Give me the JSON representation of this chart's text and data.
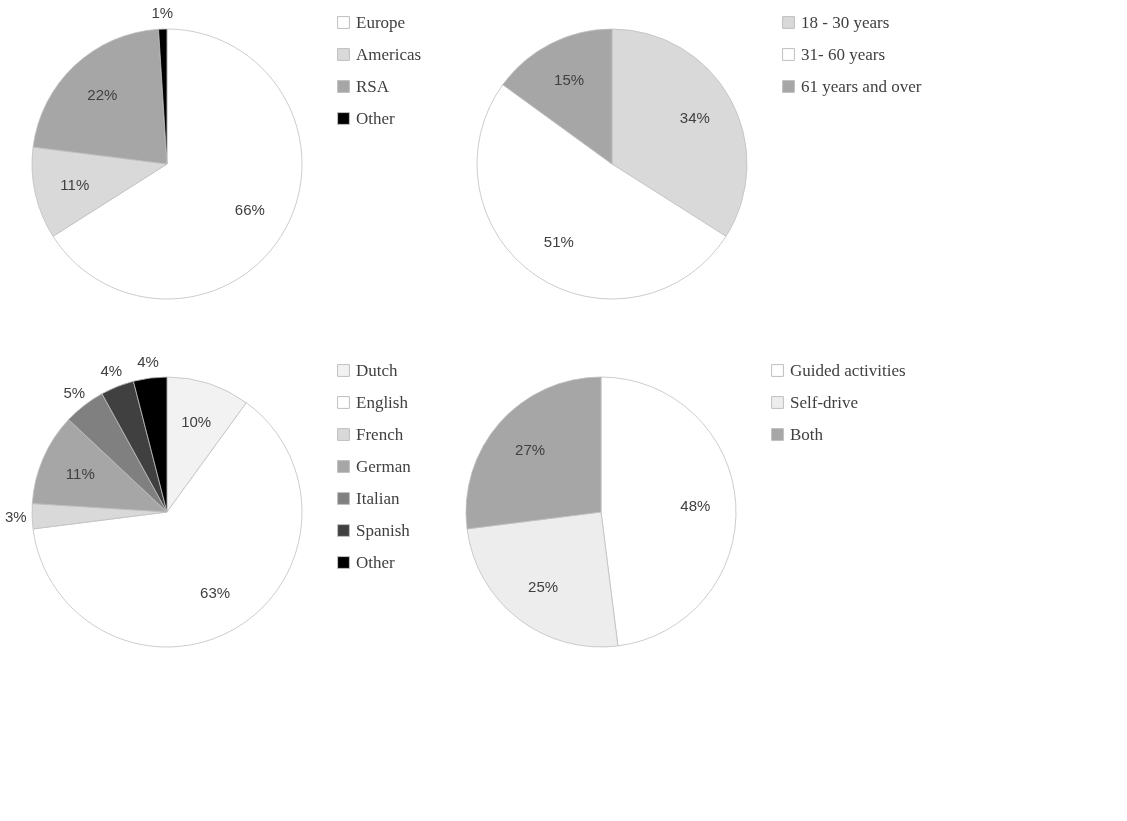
{
  "chart_data": [
    {
      "type": "pie",
      "categories": [
        "Europe",
        "Americas",
        "RSA",
        "Other"
      ],
      "values": [
        66,
        11,
        22,
        1
      ],
      "value_labels": [
        "66%",
        "11%",
        "22%",
        "1%"
      ],
      "colors": [
        "#ffffff",
        "#d9d9d9",
        "#a6a6a6",
        "#000000"
      ],
      "legend": "right"
    },
    {
      "type": "pie",
      "categories": [
        "18 - 30 years",
        "31- 60 years",
        "61 years and over"
      ],
      "values": [
        34,
        51,
        15
      ],
      "value_labels": [
        "34%",
        "51%",
        "15%"
      ],
      "colors": [
        "#d9d9d9",
        "#ffffff",
        "#a6a6a6"
      ],
      "legend": "right"
    },
    {
      "type": "pie",
      "categories": [
        "Dutch",
        "English",
        "French",
        "German",
        "Italian",
        "Spanish",
        "Other"
      ],
      "values": [
        10,
        63,
        3,
        11,
        5,
        4,
        4
      ],
      "value_labels": [
        "10%",
        "63%",
        "3%",
        "11%",
        "5%",
        "4%",
        "4%"
      ],
      "colors": [
        "#f2f2f2",
        "#ffffff",
        "#d9d9d9",
        "#a6a6a6",
        "#808080",
        "#404040",
        "#000000"
      ],
      "legend": "right"
    },
    {
      "type": "pie",
      "categories": [
        "Guided activities",
        "Self-drive",
        "Both"
      ],
      "values": [
        48,
        25,
        27
      ],
      "value_labels": [
        "48%",
        "25%",
        "27%"
      ],
      "colors": [
        "#ffffff",
        "#ededed",
        "#a6a6a6"
      ],
      "legend": "right"
    }
  ]
}
